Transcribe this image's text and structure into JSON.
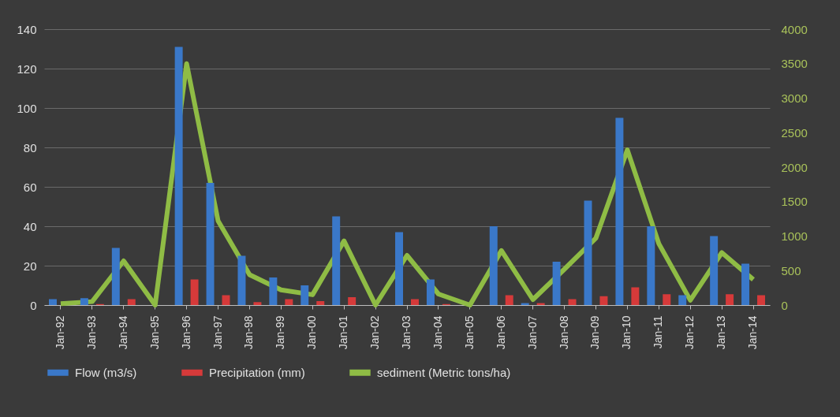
{
  "chart_data": {
    "type": "bar",
    "categories": [
      "Jan-92",
      "Jan-93",
      "Jan-94",
      "Jan-95",
      "Jan-96",
      "Jan-97",
      "Jan-98",
      "Jan-99",
      "Jan-00",
      "Jan-01",
      "Jan-02",
      "Jan-03",
      "Jan-04",
      "Jan-05",
      "Jan-06",
      "Jan-07",
      "Jan-08",
      "Jan-09",
      "Jan-10",
      "Jan-11",
      "Jan-12",
      "Jan-13",
      "Jan-14"
    ],
    "series": [
      {
        "name": "Flow (m3/s)",
        "color": "#3a78c9",
        "values": [
          3,
          3.5,
          29,
          0,
          131,
          62,
          25,
          14,
          10,
          45,
          0,
          37,
          13,
          0,
          40,
          1,
          22,
          53,
          95,
          40,
          5,
          35,
          21
        ]
      },
      {
        "name": "Precipitation (mm)",
        "color": "#d63a3a",
        "values": [
          0,
          0.5,
          3,
          0,
          13,
          5,
          1.5,
          3,
          2,
          4,
          0,
          3,
          0.5,
          0,
          5,
          1,
          3,
          4.5,
          9,
          5.5,
          0,
          5.5,
          5
        ]
      },
      {
        "name": "sediment (Metric tons/ha)",
        "type": "line",
        "axis": "y2",
        "color": "#8fbc45",
        "values": [
          20,
          50,
          640,
          0,
          3500,
          1220,
          440,
          220,
          150,
          930,
          0,
          720,
          160,
          0,
          790,
          80,
          520,
          970,
          2250,
          890,
          70,
          760,
          370
        ]
      }
    ],
    "ylim": [
      0,
      140
    ],
    "yticks": [
      0,
      20,
      40,
      60,
      80,
      100,
      120,
      140
    ],
    "y2lim": [
      0,
      4000
    ],
    "y2ticks": [
      0,
      500,
      1000,
      1500,
      2000,
      2500,
      3000,
      3500,
      4000
    ],
    "grid": "y",
    "legend": "bottom"
  }
}
